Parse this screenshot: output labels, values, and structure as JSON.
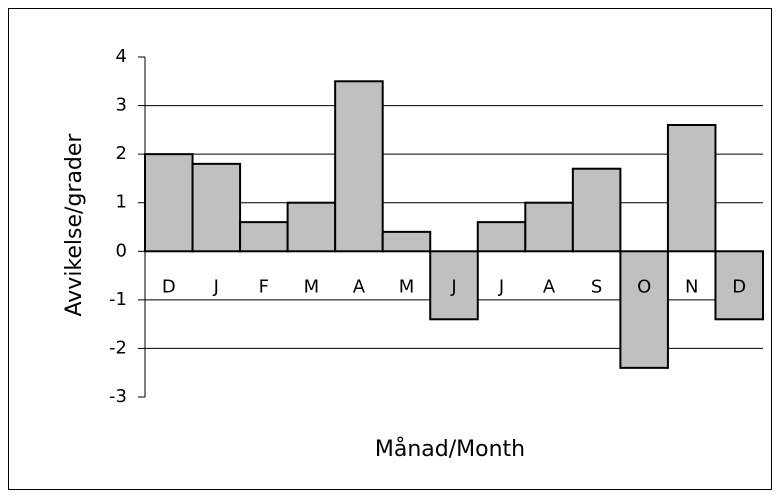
{
  "chart_data": {
    "type": "bar",
    "categories": [
      "D",
      "J",
      "F",
      "M",
      "A",
      "M",
      "J",
      "J",
      "A",
      "S",
      "O",
      "N",
      "D"
    ],
    "values": [
      2.0,
      1.8,
      0.6,
      1.0,
      3.5,
      0.4,
      -1.4,
      0.6,
      1.0,
      1.7,
      -2.4,
      2.6,
      -1.4
    ],
    "color": "#c0c0c0",
    "ylim": [
      -3,
      4
    ],
    "yticks": [
      -3,
      -2,
      -1,
      0,
      1,
      2,
      3,
      4
    ],
    "grid": true,
    "y_label": "Avvikelse/grader",
    "x_label": "Månad/Month"
  }
}
